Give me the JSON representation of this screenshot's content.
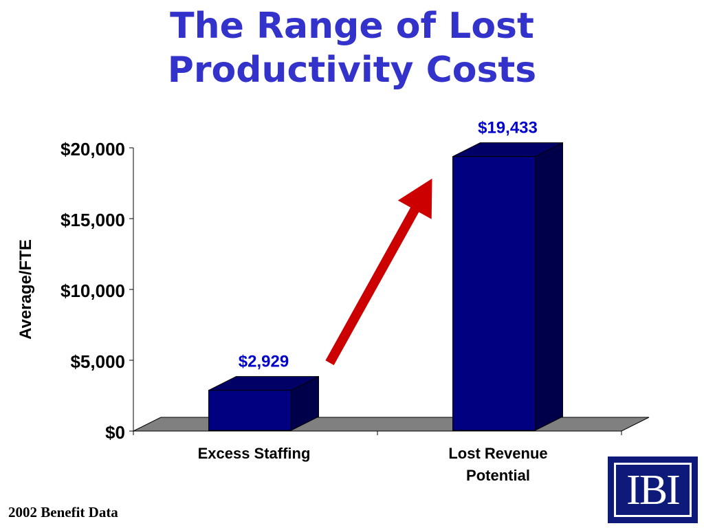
{
  "title": [
    "The Range of Lost",
    "Productivity Costs"
  ],
  "footer": "2002 Benefit Data",
  "logo": "IBI",
  "colors": {
    "title": "#3333cc",
    "bar_front": "#000080",
    "bar_side": "#00004a",
    "bar_top": "#000066",
    "floor": "#808080",
    "arrow": "#cc0000",
    "data_label": "#0000cc",
    "logo_bg": "#0d1a7a"
  },
  "chart_data": {
    "type": "bar",
    "style": "3d",
    "categories": [
      [
        "Excess Staffing"
      ],
      [
        "Lost Revenue",
        "Potential"
      ]
    ],
    "values": [
      2929,
      19433
    ],
    "data_labels": [
      "$2,929",
      "$19,433"
    ],
    "ylabel": "Average/FTE",
    "ylim": [
      0,
      20000
    ],
    "y_ticks": [
      0,
      5000,
      10000,
      15000,
      20000
    ],
    "y_tick_labels": [
      "$0",
      "$5,000",
      "$10,000",
      "$15,000",
      "$20,000"
    ],
    "grid": false,
    "legend": "none",
    "annotations": [
      {
        "type": "arrow",
        "direction": "up-right",
        "from_category": 0,
        "to_category": 1
      }
    ]
  }
}
